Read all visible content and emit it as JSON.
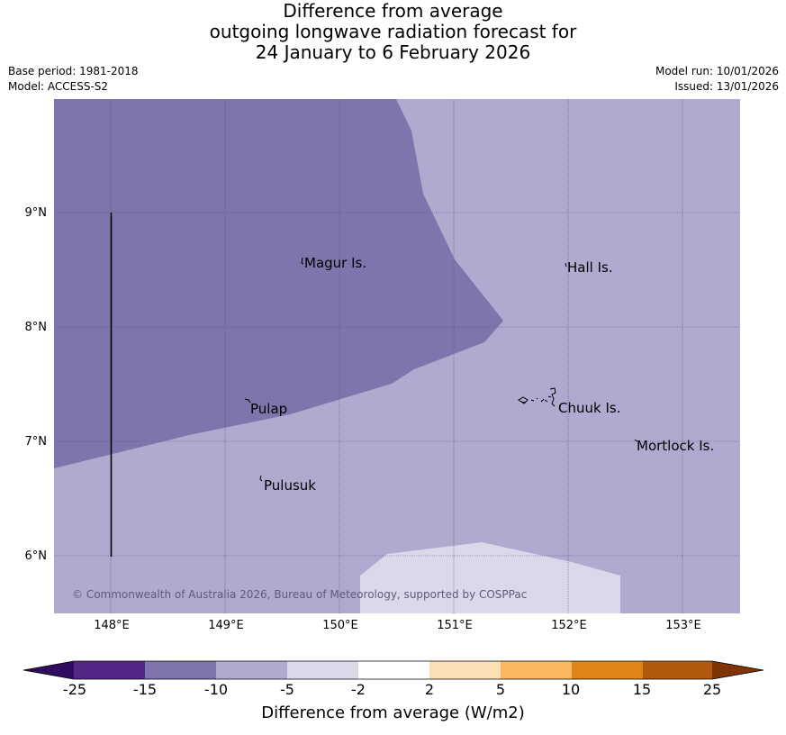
{
  "header": {
    "title_lines": [
      "Difference from average",
      "outgoing longwave radiation forecast for",
      "24 January to 6 February 2026"
    ],
    "base_period": "Base period: 1981-2018",
    "model": "Model: ACCESS-S2",
    "model_run": "Model run: 10/01/2026",
    "issued": "Issued: 13/01/2026"
  },
  "map": {
    "lat_ticks": [
      "9°N",
      "8°N",
      "7°N",
      "6°N"
    ],
    "lon_ticks": [
      "148°E",
      "149°E",
      "150°E",
      "151°E",
      "152°E",
      "153°E"
    ],
    "places": [
      "Magur Is.",
      "Hall Is.",
      "Pulap",
      "Chuuk Is.",
      "Mortlock Is.",
      "Pulusuk"
    ],
    "copyright": "© Commonwealth of Australia 2026, Bureau of Meteorology, supported by COSPPac"
  },
  "legend": {
    "title": "Difference from average (W/m2)",
    "labels": [
      "-25",
      "-15",
      "-10",
      "-5",
      "-2",
      "2",
      "5",
      "10",
      "15",
      "25"
    ],
    "colors": [
      "#2f0c5e",
      "#532786",
      "#7f74ab",
      "#b0aad0",
      "#d9d9ea",
      "#ffffff",
      "#fddfb5",
      "#fbb660",
      "#e08418",
      "#b05a0d",
      "#7d3505"
    ]
  }
}
